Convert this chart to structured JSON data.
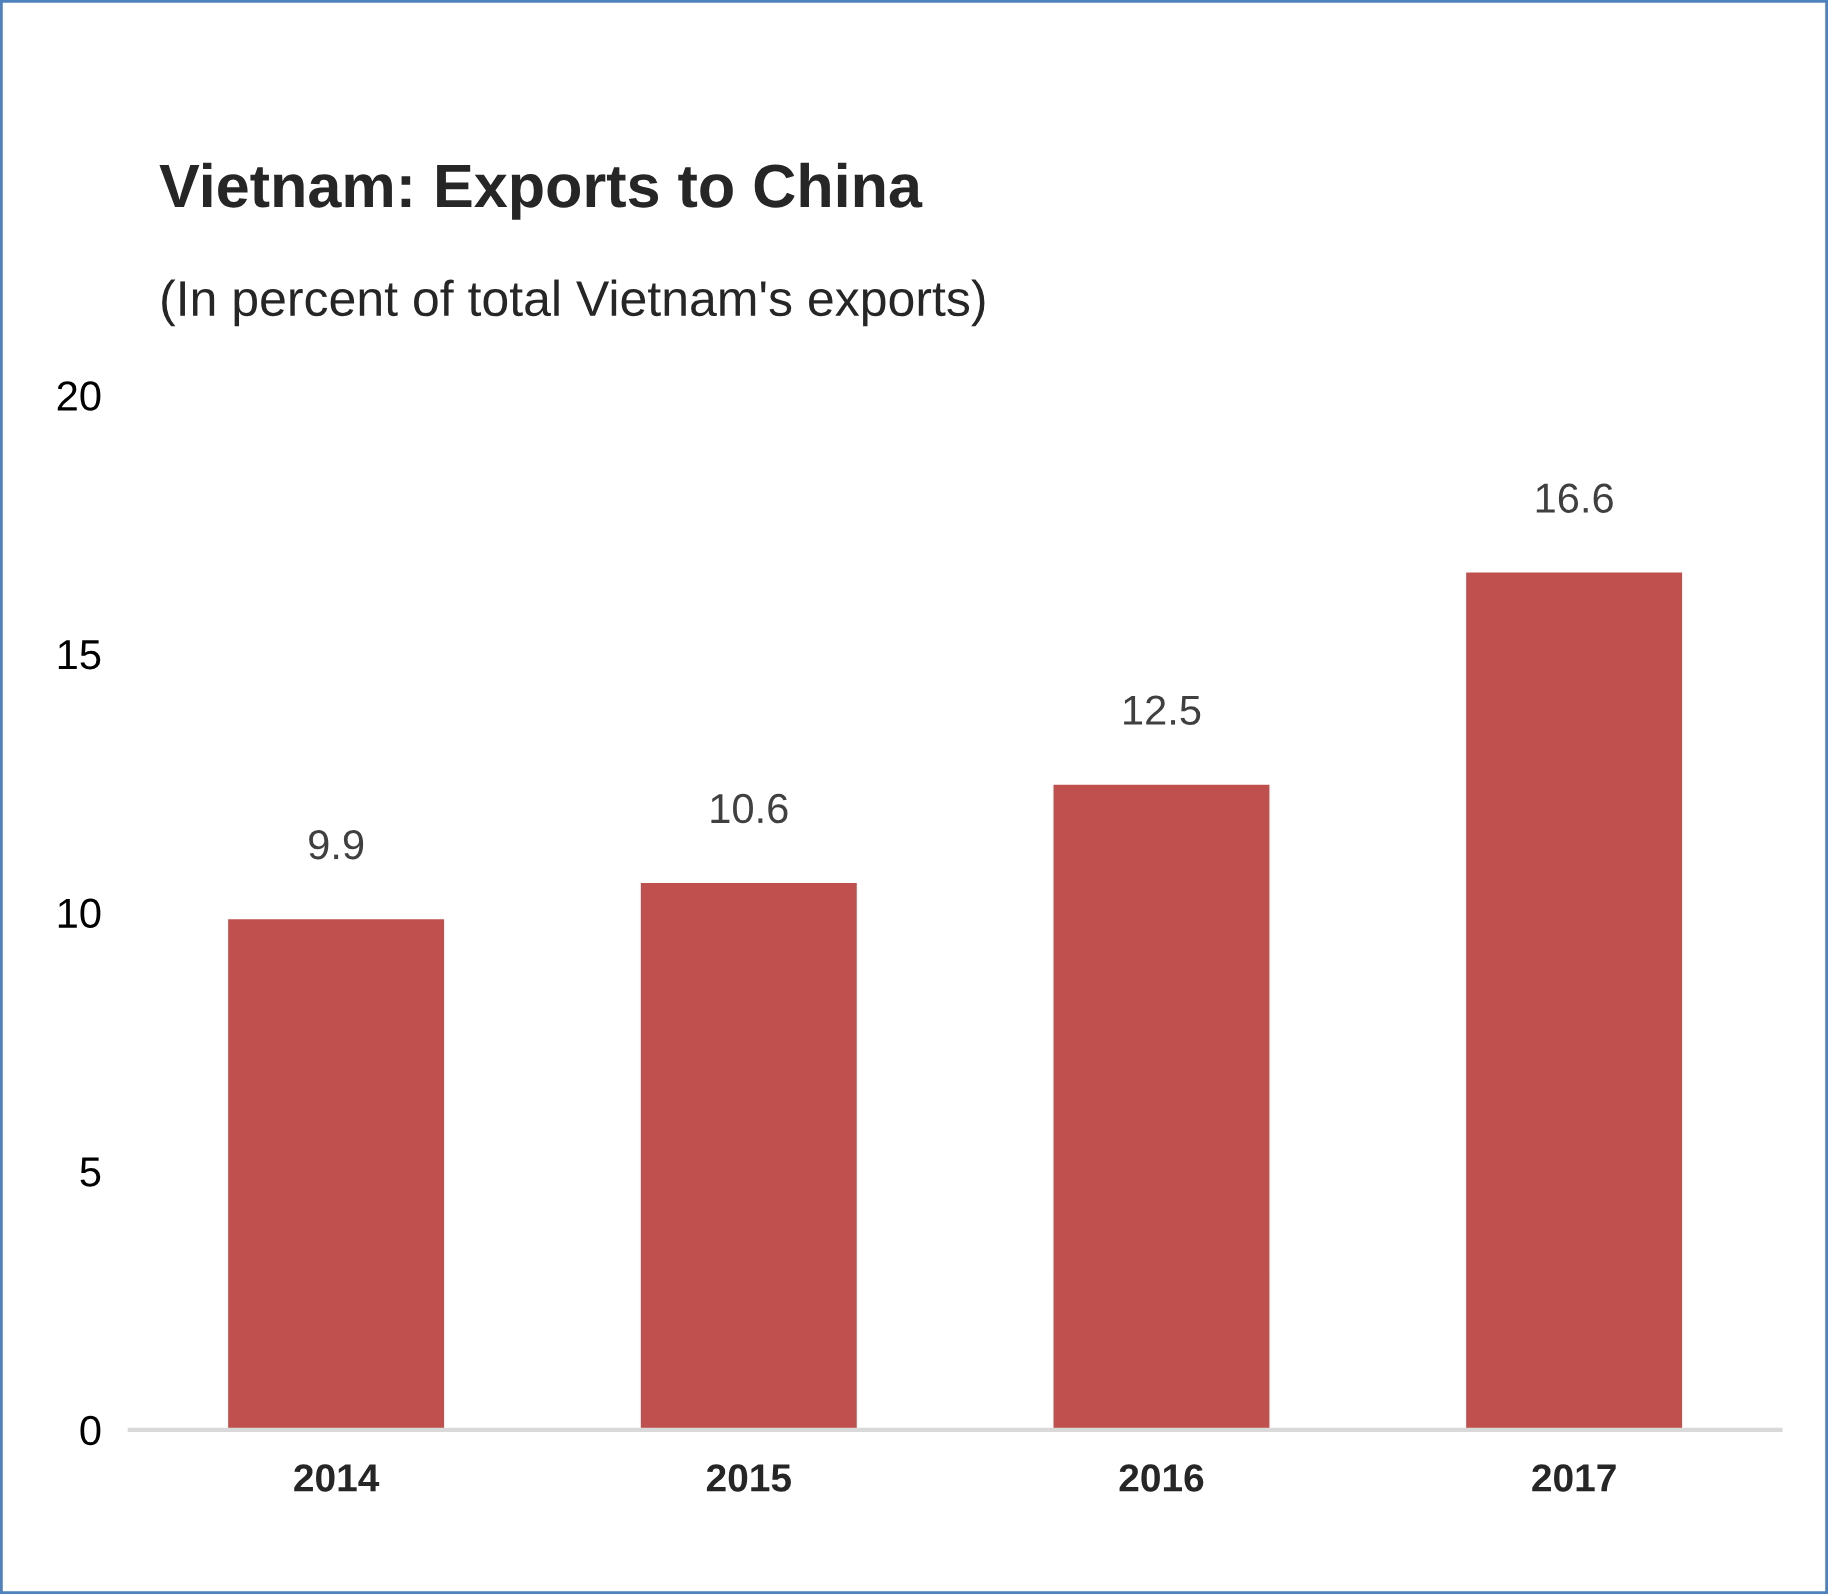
{
  "chart_data": {
    "type": "bar",
    "title": "Vietnam: Exports to China",
    "subtitle": "(In percent of total Vietnam's exports)",
    "categories": [
      "2014",
      "2015",
      "2016",
      "2017"
    ],
    "values": [
      9.9,
      10.6,
      12.5,
      16.6
    ],
    "color": "#c0504d",
    "ylim": [
      0,
      20
    ],
    "yticks": [
      0,
      5,
      10,
      15,
      20
    ],
    "grid": false,
    "data_labels": true
  }
}
